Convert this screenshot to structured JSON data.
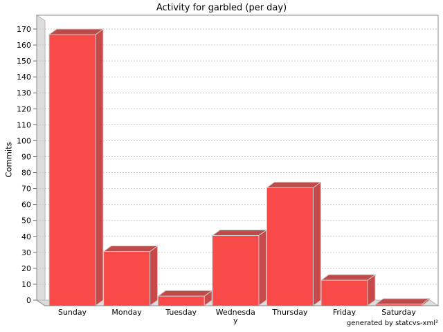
{
  "header": {
    "title": "Activity for garbled (per day)"
  },
  "footer": {
    "credit": "generated by statcvs-xml²"
  },
  "chart_data": {
    "type": "bar",
    "title": "Activity for garbled (per day)",
    "xlabel": "",
    "ylabel": "Commits",
    "categories": [
      "Sunday",
      "Monday",
      "Tuesday",
      "Wednesday",
      "Thursday",
      "Friday",
      "Saturday"
    ],
    "values": [
      170,
      34,
      6,
      44,
      74,
      16,
      1
    ],
    "ylim": [
      0,
      170
    ],
    "ytick_step": 10,
    "grid": "horizontal-dashed",
    "legend": "none",
    "style": "3d-bars",
    "colors": {
      "bar_front": "#F94A4A",
      "bar_top": "#BE4A4A",
      "bar_side": "#C74949",
      "bar_outline": "#CCCCCC",
      "wall_fill": "#DDDDDD",
      "wall_stroke": "#B3B3B3",
      "gridline": "#CCCCCC",
      "plot_border": "#888888",
      "tick": "#666666",
      "text": "#000000",
      "background": "#FFFFFF"
    }
  }
}
